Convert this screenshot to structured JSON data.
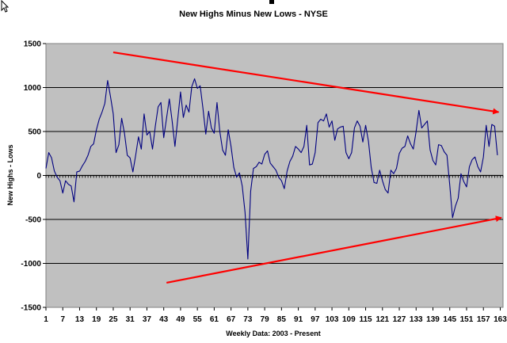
{
  "chart_data": {
    "type": "line",
    "title": "New Highs Minus New Lows - NYSE",
    "xlabel": "Weekly Data: 2003 - Present",
    "ylabel": "New Highs - Lows",
    "ylim": [
      -1500,
      1500
    ],
    "yticks": [
      1500,
      1000,
      500,
      0,
      -500,
      -1000,
      -1500
    ],
    "xlim": [
      1,
      164
    ],
    "xticks": [
      1,
      7,
      13,
      19,
      25,
      31,
      37,
      43,
      49,
      55,
      61,
      67,
      73,
      79,
      85,
      91,
      97,
      103,
      109,
      115,
      121,
      127,
      133,
      139,
      145,
      151,
      157,
      163
    ],
    "grid": "horizontal",
    "background": "#c0c0c0",
    "series": [
      {
        "color": "#000080",
        "values": [
          80,
          260,
          200,
          50,
          -20,
          -60,
          -200,
          -60,
          -100,
          -120,
          -300,
          40,
          50,
          110,
          160,
          230,
          330,
          360,
          520,
          640,
          720,
          820,
          1080,
          900,
          700,
          260,
          350,
          650,
          480,
          230,
          200,
          40,
          230,
          440,
          300,
          700,
          460,
          500,
          300,
          560,
          780,
          830,
          430,
          650,
          870,
          620,
          330,
          640,
          950,
          660,
          800,
          720,
          1010,
          1100,
          990,
          1020,
          760,
          470,
          730,
          540,
          480,
          830,
          500,
          290,
          230,
          520,
          330,
          90,
          -20,
          30,
          -120,
          -420,
          -950,
          -180,
          80,
          100,
          150,
          130,
          240,
          280,
          140,
          100,
          60,
          -20,
          -60,
          -150,
          50,
          160,
          220,
          330,
          300,
          260,
          330,
          570,
          120,
          130,
          260,
          600,
          640,
          620,
          700,
          550,
          620,
          400,
          530,
          550,
          560,
          260,
          190,
          260,
          540,
          620,
          560,
          380,
          570,
          390,
          90,
          -80,
          -90,
          60,
          -60,
          -160,
          -200,
          60,
          20,
          80,
          250,
          310,
          330,
          450,
          360,
          300,
          500,
          740,
          540,
          580,
          620,
          290,
          170,
          120,
          350,
          340,
          270,
          230,
          -110,
          -480,
          -350,
          -260,
          20,
          -70,
          -130,
          100,
          180,
          210,
          100,
          40,
          210,
          570,
          330,
          580,
          560,
          230
        ]
      }
    ],
    "annotations": [
      {
        "type": "arrow",
        "color": "#ff0000",
        "from": [
          25,
          1400
        ],
        "to": [
          163,
          720
        ]
      },
      {
        "type": "arrow",
        "color": "#ff0000",
        "from": [
          44,
          -1220
        ],
        "to": [
          164,
          -480
        ]
      }
    ]
  }
}
